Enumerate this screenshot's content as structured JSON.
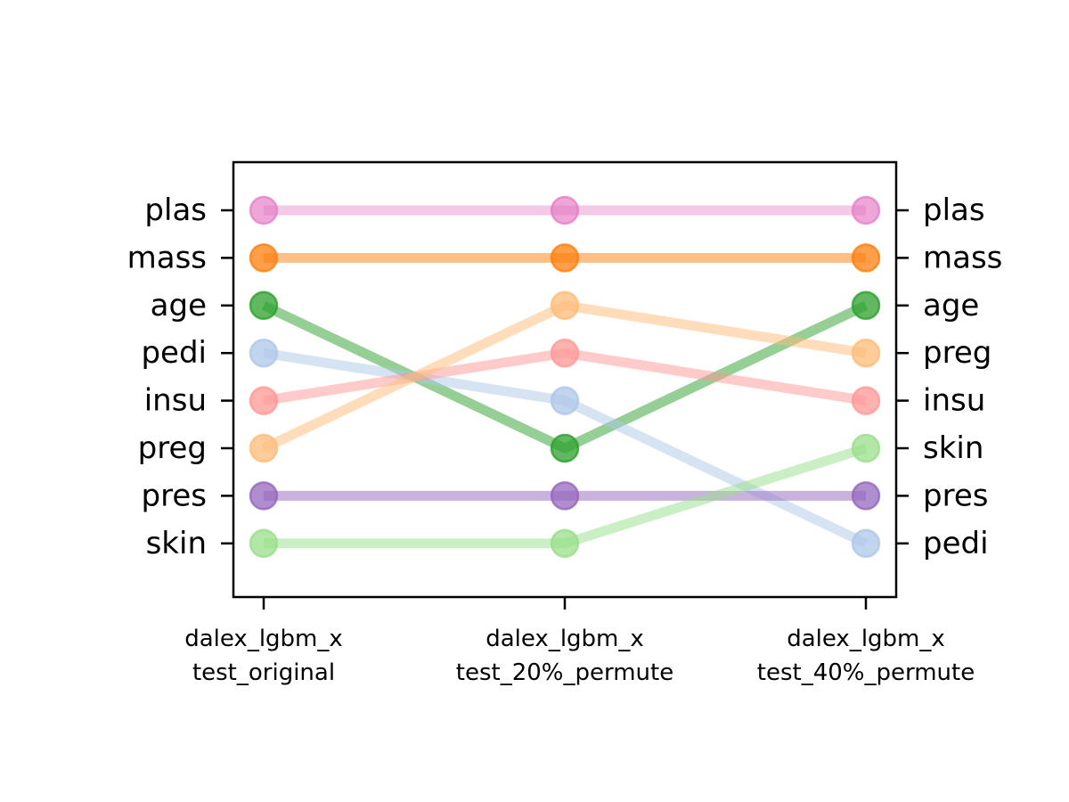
{
  "chart_data": {
    "type": "line",
    "chart_kind": "rank-bump",
    "categories": [
      [
        "dalex_lgbm_x",
        "test_original"
      ],
      [
        "dalex_lgbm_x",
        "test_20%_permute"
      ],
      [
        "dalex_lgbm_x",
        "test_40%_permute"
      ]
    ],
    "left_tick_labels": [
      "plas",
      "mass",
      "age",
      "pedi",
      "insu",
      "preg",
      "pres",
      "skin"
    ],
    "right_tick_labels": [
      "plas",
      "mass",
      "age",
      "preg",
      "insu",
      "skin",
      "pres",
      "pedi"
    ],
    "y_order": "rank 1 at top, rank 8 at bottom",
    "ylim": [
      0.0,
      9.0
    ],
    "grid": false,
    "series": [
      {
        "name": "plas",
        "values": [
          1,
          1,
          1
        ],
        "color": "#e377c2",
        "alpha": 0.4
      },
      {
        "name": "mass",
        "values": [
          2,
          2,
          2
        ],
        "color": "#ff7f0e",
        "alpha": 0.5
      },
      {
        "name": "age",
        "values": [
          3,
          6,
          3
        ],
        "color": "#2ca02c",
        "alpha": 0.5
      },
      {
        "name": "pedi",
        "values": [
          4,
          5,
          8
        ],
        "color": "#aec7e8",
        "alpha": 0.5
      },
      {
        "name": "insu",
        "values": [
          5,
          4,
          5
        ],
        "color": "#ff9896",
        "alpha": 0.5
      },
      {
        "name": "preg",
        "values": [
          6,
          3,
          4
        ],
        "color": "#ffbb78",
        "alpha": 0.5
      },
      {
        "name": "pres",
        "values": [
          7,
          7,
          7
        ],
        "color": "#9467bd",
        "alpha": 0.5
      },
      {
        "name": "skin",
        "values": [
          8,
          8,
          6
        ],
        "color": "#98df8a",
        "alpha": 0.5
      }
    ]
  }
}
